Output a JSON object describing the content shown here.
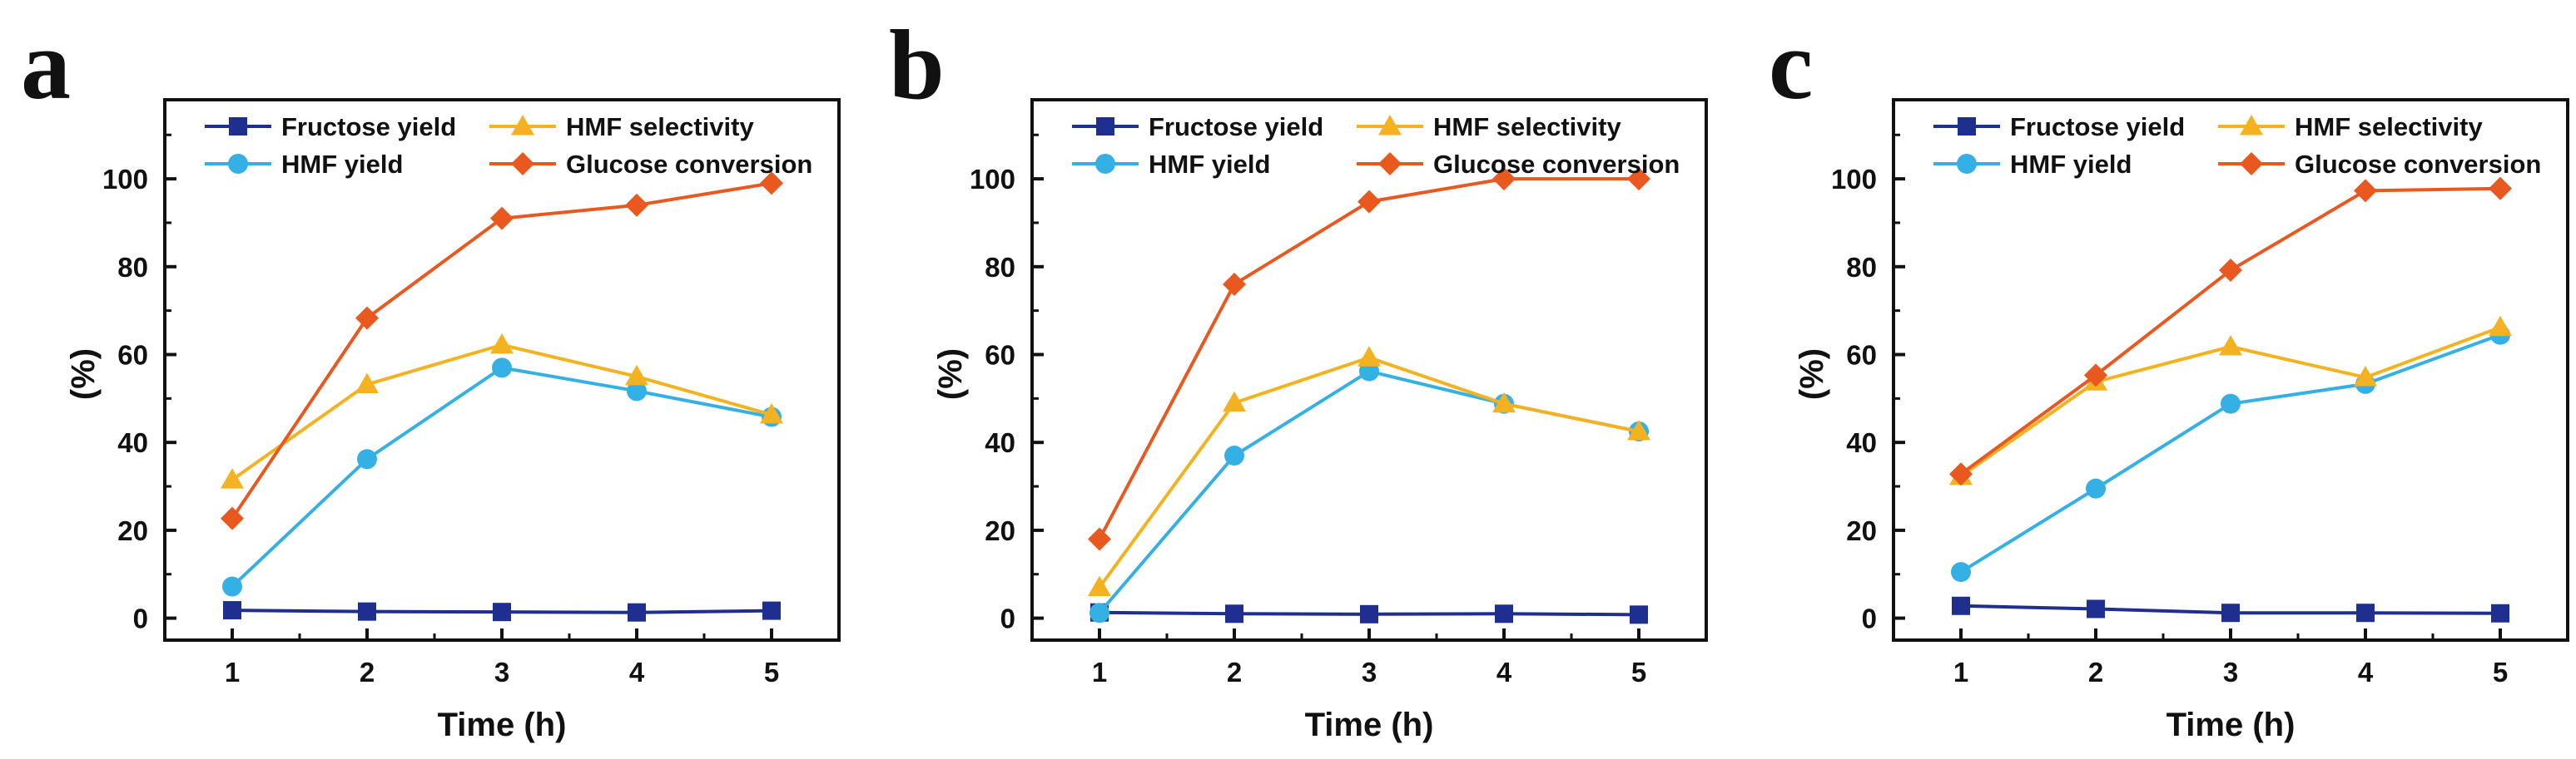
{
  "colors": {
    "fructose": "#1f2f8f",
    "hmf_yield": "#35b0e5",
    "hmf_selectivity": "#f4b221",
    "glucose": "#e8581f",
    "axis": "#111111"
  },
  "chart_data": [
    {
      "panel": "a",
      "type": "line",
      "xlabel": "Time (h)",
      "ylabel": "(%)",
      "x": [
        1,
        2,
        3,
        4,
        5
      ],
      "xlim": [
        0.5,
        5.5
      ],
      "ylim": [
        -5,
        118
      ],
      "yticks": [
        0,
        20,
        40,
        60,
        80,
        100
      ],
      "legend_position": "top",
      "series": [
        {
          "name": "Fructose yield",
          "marker": "square",
          "color": "#1f2f8f",
          "values": [
            1.8,
            1.5,
            1.4,
            1.3,
            1.7
          ]
        },
        {
          "name": "HMF yield",
          "marker": "circle",
          "color": "#35b0e5",
          "values": [
            7.2,
            36.2,
            57.0,
            51.7,
            45.8
          ]
        },
        {
          "name": "HMF selectivity",
          "marker": "triangle",
          "color": "#f4b221",
          "values": [
            31.5,
            53.2,
            62.2,
            55.0,
            46.3
          ]
        },
        {
          "name": "Glucose conversion",
          "marker": "diamond",
          "color": "#e8581f",
          "values": [
            22.7,
            68.3,
            91.0,
            94.0,
            99.0
          ]
        }
      ]
    },
    {
      "panel": "b",
      "type": "line",
      "xlabel": "Time (h)",
      "ylabel": "(%)",
      "x": [
        1,
        2,
        3,
        4,
        5
      ],
      "xlim": [
        0.5,
        5.5
      ],
      "ylim": [
        -5,
        118
      ],
      "yticks": [
        0,
        20,
        40,
        60,
        80,
        100
      ],
      "legend_position": "top",
      "series": [
        {
          "name": "Fructose yield",
          "marker": "square",
          "color": "#1f2f8f",
          "values": [
            1.3,
            1.0,
            0.9,
            1.0,
            0.8
          ]
        },
        {
          "name": "HMF yield",
          "marker": "circle",
          "color": "#35b0e5",
          "values": [
            1.2,
            37.0,
            56.2,
            48.8,
            42.5
          ]
        },
        {
          "name": "HMF selectivity",
          "marker": "triangle",
          "color": "#f4b221",
          "values": [
            7.0,
            49.0,
            59.3,
            48.8,
            42.5
          ]
        },
        {
          "name": "Glucose conversion",
          "marker": "diamond",
          "color": "#e8581f",
          "values": [
            18.0,
            76.0,
            94.8,
            100.0,
            100.0
          ]
        }
      ]
    },
    {
      "panel": "c",
      "type": "line",
      "xlabel": "Time (h)",
      "ylabel": "(%)",
      "x": [
        1,
        2,
        3,
        4,
        5
      ],
      "xlim": [
        0.5,
        5.5
      ],
      "ylim": [
        -5,
        118
      ],
      "yticks": [
        0,
        20,
        40,
        60,
        80,
        100
      ],
      "legend_position": "top",
      "series": [
        {
          "name": "Fructose yield",
          "marker": "square",
          "color": "#1f2f8f",
          "values": [
            2.8,
            2.1,
            1.2,
            1.2,
            1.1
          ]
        },
        {
          "name": "HMF yield",
          "marker": "circle",
          "color": "#35b0e5",
          "values": [
            10.5,
            29.5,
            48.8,
            53.3,
            64.5
          ]
        },
        {
          "name": "HMF selectivity",
          "marker": "triangle",
          "color": "#f4b221",
          "values": [
            32.3,
            53.8,
            61.8,
            54.8,
            66.2
          ]
        },
        {
          "name": "Glucose conversion",
          "marker": "diamond",
          "color": "#e8581f",
          "values": [
            32.8,
            55.3,
            79.2,
            97.3,
            97.8
          ]
        }
      ]
    }
  ]
}
